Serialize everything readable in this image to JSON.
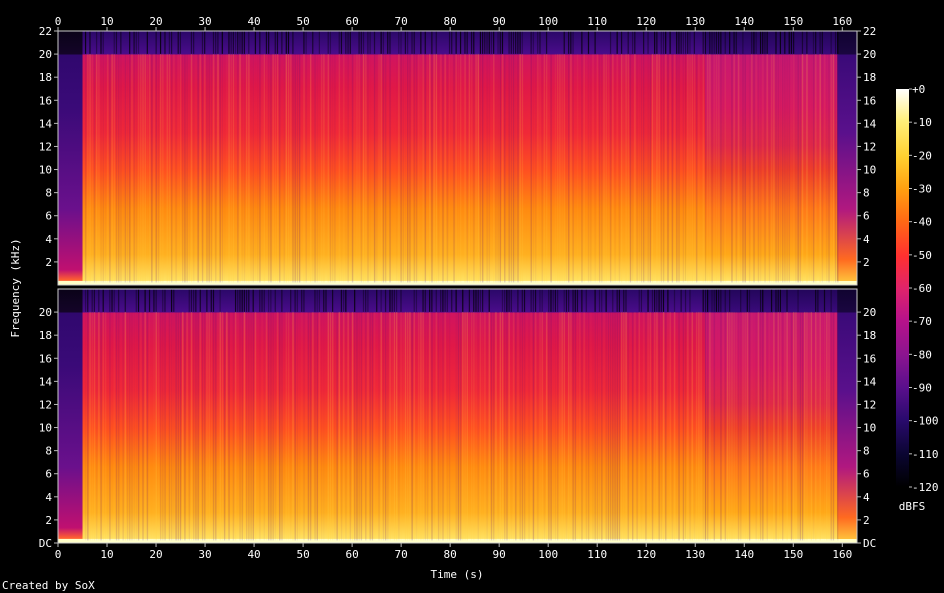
{
  "chart_data": {
    "type": "heatmap",
    "subtype": "spectrogram",
    "xlabel": "Time (s)",
    "ylabel": "Frequency (kHz)",
    "xlim": [
      0,
      163
    ],
    "ylim": [
      0,
      22
    ],
    "x_ticks": [
      "0",
      "10",
      "20",
      "30",
      "40",
      "50",
      "60",
      "70",
      "80",
      "90",
      "100",
      "110",
      "120",
      "130",
      "140",
      "150",
      "160"
    ],
    "y_ticks_top": [
      "2",
      "4",
      "6",
      "8",
      "10",
      "12",
      "14",
      "16",
      "18",
      "20",
      "22"
    ],
    "y_ticks_bottom": [
      "DC",
      "2",
      "4",
      "6",
      "8",
      "10",
      "12",
      "14",
      "16",
      "18",
      "20"
    ],
    "channels": 2,
    "colorbar": {
      "label": "dBFS",
      "range": [
        -120,
        0
      ],
      "ticks": [
        "+0",
        "-10",
        "-20",
        "-30",
        "-40",
        "-50",
        "-60",
        "-70",
        "-80",
        "-90",
        "-100",
        "-110",
        "-120"
      ],
      "palette": [
        "#000000",
        "#0a0530",
        "#2a0a6e",
        "#5a0f8c",
        "#8a1490",
        "#b8128a",
        "#e0246a",
        "#ff3030",
        "#ff6a14",
        "#ffa010",
        "#ffd030",
        "#fff07a",
        "#ffffff"
      ]
    },
    "content_regions": [
      {
        "t_start": 0,
        "t_end": 5,
        "description_level": "low, mostly purple/blue above 2 kHz"
      },
      {
        "t_start": 5,
        "t_end": 128,
        "description_level": "full band loud, red above 10 kHz, orange-yellow below"
      },
      {
        "t_start": 128,
        "t_end": 132,
        "description_level": "transition"
      },
      {
        "t_start": 132,
        "t_end": 159,
        "description_level": "slightly quieter highs, pink-red above 12 kHz"
      },
      {
        "t_start": 159,
        "t_end": 163,
        "description_level": "fade out"
      }
    ],
    "cutoff_khz": 20,
    "annotations": [
      "Created by SoX"
    ]
  }
}
